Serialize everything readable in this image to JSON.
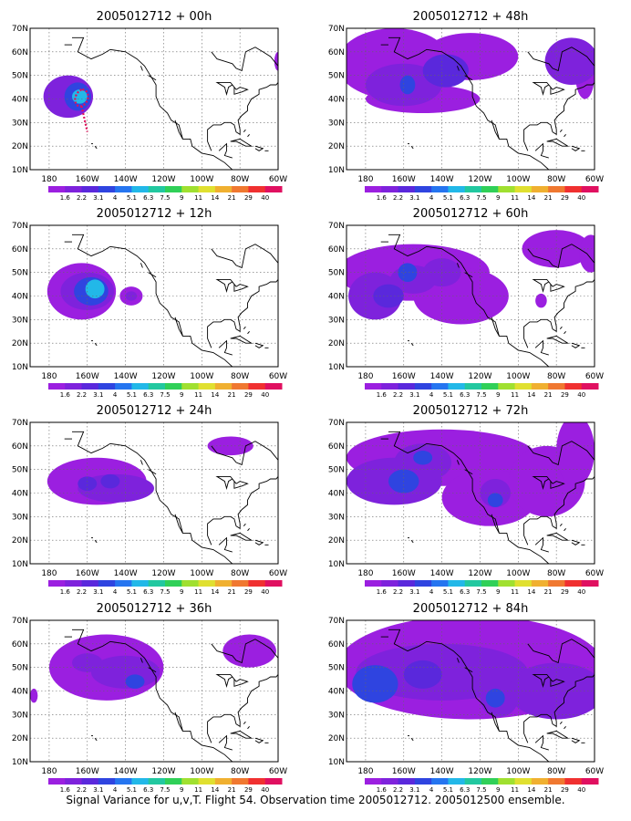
{
  "caption": "Signal Variance for u,v,T. Flight 54. Observation time 2005012712. 2005012500 ensemble.",
  "chart_data": {
    "type": "heatmap",
    "panels": [
      {
        "title": "2005012712 + 00h"
      },
      {
        "title": "2005012712 + 48h"
      },
      {
        "title": "2005012712 + 12h"
      },
      {
        "title": "2005012712 + 60h"
      },
      {
        "title": "2005012712 + 24h"
      },
      {
        "title": "2005012712 + 72h"
      },
      {
        "title": "2005012712 + 36h"
      },
      {
        "title": "2005012712 + 84h"
      }
    ],
    "x_ticks": [
      "180",
      "160W",
      "140W",
      "120W",
      "100W",
      "80W",
      "60W"
    ],
    "y_ticks": [
      "10N",
      "20N",
      "30N",
      "40N",
      "50N",
      "60N",
      "70N"
    ],
    "lon_range": [
      -190,
      -60
    ],
    "lat_range": [
      10,
      70
    ],
    "grid": true,
    "colorbar": {
      "levels": [
        "1.6",
        "2.2",
        "3.1",
        "4",
        "5.1",
        "6.3",
        "7.5",
        "9",
        "11",
        "14",
        "21",
        "29",
        "40"
      ],
      "colors": [
        "#9b1fe0",
        "#7e22dc",
        "#5a28dc",
        "#2f44e0",
        "#2575f0",
        "#22b8e8",
        "#22c8a0",
        "#30d058",
        "#a0e030",
        "#e0e030",
        "#f0b030",
        "#f07830",
        "#f03030",
        "#e01060"
      ]
    },
    "blobs": [
      [
        {
          "lon": -170,
          "lat": 41,
          "rx": 13,
          "ry": 9,
          "v": 2
        },
        {
          "lon": -165,
          "lat": 41,
          "rx": 7,
          "ry": 6,
          "v": 4
        },
        {
          "lon": -164,
          "lat": 41,
          "rx": 4,
          "ry": 3,
          "v": 6
        },
        {
          "lon": -60,
          "lat": 56,
          "rx": 2,
          "ry": 4,
          "v": 1
        }
      ],
      [
        {
          "lon": -165,
          "lat": 55,
          "rx": 30,
          "ry": 15,
          "v": 1
        },
        {
          "lon": -125,
          "lat": 58,
          "rx": 25,
          "ry": 10,
          "v": 1
        },
        {
          "lon": -160,
          "lat": 46,
          "rx": 20,
          "ry": 9,
          "v": 2
        },
        {
          "lon": -138,
          "lat": 52,
          "rx": 12,
          "ry": 7,
          "v": 3
        },
        {
          "lon": -158,
          "lat": 46,
          "rx": 4,
          "ry": 4,
          "v": 4
        },
        {
          "lon": -72,
          "lat": 56,
          "rx": 14,
          "ry": 10,
          "v": 2
        },
        {
          "lon": -150,
          "lat": 40,
          "rx": 30,
          "ry": 6,
          "v": 1
        },
        {
          "lon": -65,
          "lat": 50,
          "rx": 5,
          "ry": 10,
          "v": 1
        }
      ],
      [
        {
          "lon": -163,
          "lat": 42,
          "rx": 18,
          "ry": 12,
          "v": 1
        },
        {
          "lon": -160,
          "lat": 42,
          "rx": 14,
          "ry": 8,
          "v": 2
        },
        {
          "lon": -158,
          "lat": 42,
          "rx": 9,
          "ry": 6,
          "v": 4
        },
        {
          "lon": -156,
          "lat": 43,
          "rx": 5,
          "ry": 4,
          "v": 6
        },
        {
          "lon": -137,
          "lat": 40,
          "rx": 6,
          "ry": 4,
          "v": 1
        },
        {
          "lon": -137,
          "lat": 40,
          "rx": 3,
          "ry": 2,
          "v": 2
        }
      ],
      [
        {
          "lon": -155,
          "lat": 50,
          "rx": 40,
          "ry": 12,
          "v": 1
        },
        {
          "lon": -130,
          "lat": 40,
          "rx": 25,
          "ry": 12,
          "v": 1
        },
        {
          "lon": -175,
          "lat": 40,
          "rx": 14,
          "ry": 10,
          "v": 2
        },
        {
          "lon": -155,
          "lat": 47,
          "rx": 12,
          "ry": 6,
          "v": 2
        },
        {
          "lon": -140,
          "lat": 50,
          "rx": 10,
          "ry": 6,
          "v": 2
        },
        {
          "lon": -168,
          "lat": 40,
          "rx": 8,
          "ry": 5,
          "v": 3
        },
        {
          "lon": -158,
          "lat": 50,
          "rx": 5,
          "ry": 4,
          "v": 4
        },
        {
          "lon": -80,
          "lat": 60,
          "rx": 18,
          "ry": 8,
          "v": 1
        },
        {
          "lon": -62,
          "lat": 58,
          "rx": 6,
          "ry": 8,
          "v": 1
        },
        {
          "lon": -88,
          "lat": 38,
          "rx": 3,
          "ry": 3,
          "v": 1
        }
      ],
      [
        {
          "lon": -155,
          "lat": 45,
          "rx": 26,
          "ry": 10,
          "v": 1
        },
        {
          "lon": -145,
          "lat": 42,
          "rx": 20,
          "ry": 6,
          "v": 2
        },
        {
          "lon": -148,
          "lat": 45,
          "rx": 5,
          "ry": 3,
          "v": 3
        },
        {
          "lon": -160,
          "lat": 44,
          "rx": 5,
          "ry": 3,
          "v": 3
        },
        {
          "lon": -85,
          "lat": 60,
          "rx": 12,
          "ry": 4,
          "v": 1
        }
      ],
      [
        {
          "lon": -140,
          "lat": 55,
          "rx": 50,
          "ry": 12,
          "v": 1
        },
        {
          "lon": -115,
          "lat": 38,
          "rx": 25,
          "ry": 12,
          "v": 1
        },
        {
          "lon": -165,
          "lat": 45,
          "rx": 25,
          "ry": 10,
          "v": 2
        },
        {
          "lon": -150,
          "lat": 53,
          "rx": 15,
          "ry": 8,
          "v": 2
        },
        {
          "lon": -112,
          "lat": 40,
          "rx": 8,
          "ry": 6,
          "v": 2
        },
        {
          "lon": -112,
          "lat": 37,
          "rx": 4,
          "ry": 3,
          "v": 4
        },
        {
          "lon": -160,
          "lat": 45,
          "rx": 8,
          "ry": 5,
          "v": 4
        },
        {
          "lon": -150,
          "lat": 55,
          "rx": 5,
          "ry": 3,
          "v": 4
        },
        {
          "lon": -85,
          "lat": 45,
          "rx": 20,
          "ry": 15,
          "v": 1
        },
        {
          "lon": -70,
          "lat": 58,
          "rx": 10,
          "ry": 15,
          "v": 1
        }
      ],
      [
        {
          "lon": -150,
          "lat": 50,
          "rx": 30,
          "ry": 14,
          "v": 1
        },
        {
          "lon": -140,
          "lat": 48,
          "rx": 18,
          "ry": 7,
          "v": 2
        },
        {
          "lon": -135,
          "lat": 44,
          "rx": 5,
          "ry": 3,
          "v": 4
        },
        {
          "lon": -160,
          "lat": 52,
          "rx": 8,
          "ry": 4,
          "v": 2
        },
        {
          "lon": -75,
          "lat": 57,
          "rx": 14,
          "ry": 7,
          "v": 1
        },
        {
          "lon": -188,
          "lat": 38,
          "rx": 2,
          "ry": 3,
          "v": 1
        }
      ],
      [
        {
          "lon": -125,
          "lat": 50,
          "rx": 70,
          "ry": 22,
          "v": 1
        },
        {
          "lon": -140,
          "lat": 48,
          "rx": 45,
          "ry": 12,
          "v": 2
        },
        {
          "lon": -175,
          "lat": 43,
          "rx": 12,
          "ry": 8,
          "v": 4
        },
        {
          "lon": -150,
          "lat": 47,
          "rx": 10,
          "ry": 6,
          "v": 3
        },
        {
          "lon": -110,
          "lat": 37,
          "rx": 10,
          "ry": 8,
          "v": 2
        },
        {
          "lon": -112,
          "lat": 37,
          "rx": 5,
          "ry": 4,
          "v": 4
        },
        {
          "lon": -80,
          "lat": 40,
          "rx": 25,
          "ry": 12,
          "v": 2
        }
      ]
    ]
  }
}
